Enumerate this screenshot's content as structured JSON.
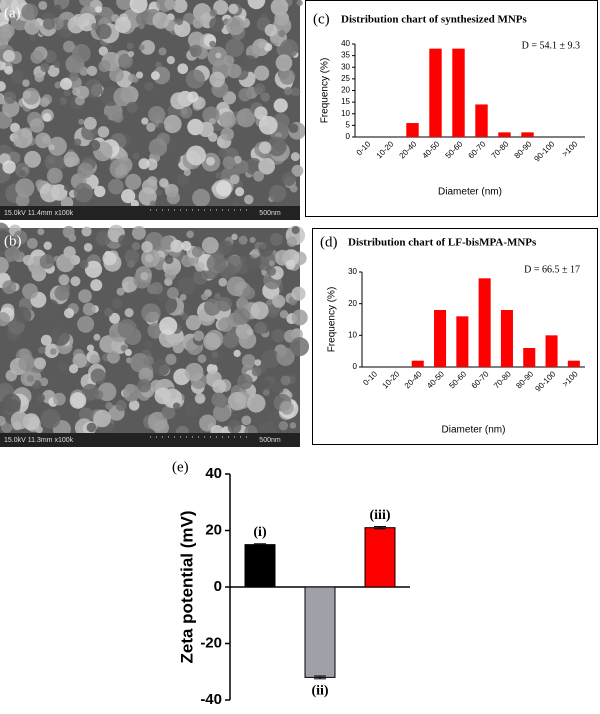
{
  "images": [
    {
      "label": "(a)",
      "info": "15.0kV 11.4mm x100k",
      "scale": "500nm"
    },
    {
      "label": "(b)",
      "info": "15.0kV 11.3mm x100k",
      "scale": "500nm"
    }
  ],
  "chart_data": [
    {
      "type": "bar",
      "panel_label": "(c)",
      "title": "Distribution chart of synthesized MNPs",
      "annotation": "D = 54.1 ± 9.3",
      "x_label": "Diameter (nm)",
      "y_label": "Frequency (%)",
      "categories": [
        "0-10",
        "10-20",
        "20-40",
        "40-50",
        "50-60",
        "60-70",
        "70-80",
        "80-90",
        "90-100",
        ">100"
      ],
      "values": [
        0,
        0,
        6,
        38,
        38,
        14,
        2,
        2,
        0,
        0
      ],
      "color": "#ff0000",
      "ylim": [
        0,
        40
      ],
      "yticks": [
        0,
        5,
        10,
        15,
        20,
        25,
        30,
        35,
        40
      ]
    },
    {
      "type": "bar",
      "panel_label": "(d)",
      "title": "Distribution chart of LF-bisMPA-MNPs",
      "annotation": "D = 66.5 ± 17",
      "x_label": "Diameter (nm)",
      "y_label": "Frequency (%)",
      "categories": [
        "0-10",
        "10-20",
        "20-40",
        "40-50",
        "50-60",
        "60-70",
        "70-80",
        "80-90",
        "90-100",
        ">100"
      ],
      "values": [
        0,
        0,
        2,
        18,
        16,
        28,
        18,
        6,
        10,
        2
      ],
      "color": "#ff0000",
      "ylim": [
        0,
        30
      ],
      "yticks": [
        0,
        10,
        20,
        30
      ]
    },
    {
      "type": "errorbar",
      "panel_label": "(e)",
      "y_label": "Zeta potential (mV)",
      "categories": [
        "(i)",
        "(ii)",
        "(iii)"
      ],
      "values": [
        15,
        -32,
        21
      ],
      "errors": [
        0.3,
        0.5,
        0.4
      ],
      "colors": [
        "#000000",
        "#a0a0a8",
        "#ff0000"
      ],
      "ylim": [
        -40,
        40
      ],
      "yticks": [
        -40,
        -20,
        0,
        20,
        40
      ]
    }
  ]
}
